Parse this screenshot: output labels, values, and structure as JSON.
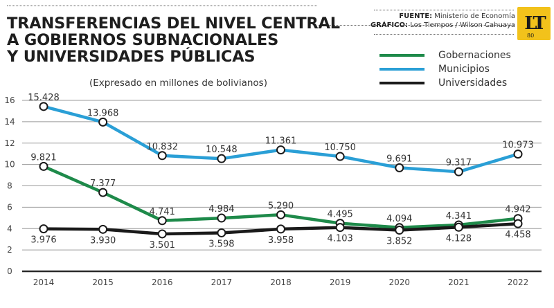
{
  "header": {
    "title_lines": [
      "TRANSFERENCIAS DEL NIVEL CENTRAL",
      "A GOBIERNOS SUBNACIONALES",
      "Y UNIVERSIDADES PÚBLICAS"
    ],
    "subtitle": "(Expresado en millones de bolivianos)",
    "source_label": "FUENTE:",
    "source_value": "Ministerio de Economía",
    "graphic_label": "GRÁFICO:",
    "graphic_value": "Los Tiempos / Wilson Cahuaya",
    "logo_text": "LT",
    "logo_sub": "80"
  },
  "colors": {
    "gobernaciones": "#1e8a4a",
    "municipios": "#2a9fd6",
    "universidades": "#1a1a1a",
    "grid": "#9a9a9a",
    "logo_bg": "#f2c21b"
  },
  "chart_data": {
    "type": "line",
    "title": "TRANSFERENCIAS DEL NIVEL CENTRAL A GOBIERNOS SUBNACIONALES Y UNIVERSIDADES PÚBLICAS",
    "subtitle": "(Expresado en millones de bolivianos)",
    "xlabel": "",
    "ylabel": "",
    "x": [
      "2014",
      "2015",
      "2016",
      "2017",
      "2018",
      "2019",
      "2020",
      "2021",
      "2022"
    ],
    "ylim": [
      0,
      16
    ],
    "yticks": [
      0,
      2,
      4,
      6,
      8,
      10,
      12,
      14,
      16
    ],
    "grid": true,
    "legend": "top-right",
    "series": [
      {
        "name": "Gobernaciones",
        "key": "gobernaciones",
        "values": [
          9.821,
          7.377,
          4.741,
          4.984,
          5.29,
          4.495,
          4.094,
          4.341,
          4.942
        ],
        "labels": [
          "9.821",
          "7.377",
          "4.741",
          "4.984",
          "5.290",
          "4.495",
          "4.094",
          "4.341",
          "4.942"
        ],
        "label_pos": [
          "above",
          "above",
          "above",
          "above",
          "above",
          "above",
          "above",
          "above",
          "above"
        ]
      },
      {
        "name": "Municipios",
        "key": "municipios",
        "values": [
          15.428,
          13.968,
          10.832,
          10.548,
          11.361,
          10.75,
          9.691,
          9.317,
          10.973
        ],
        "labels": [
          "15.428",
          "13.968",
          "10.832",
          "10.548",
          "11.361",
          "10.750",
          "9.691",
          "9.317",
          "10.973"
        ],
        "label_pos": [
          "above",
          "above",
          "above",
          "above",
          "above",
          "above",
          "above",
          "above",
          "above"
        ]
      },
      {
        "name": "Universidades",
        "key": "universidades",
        "values": [
          3.976,
          3.93,
          3.501,
          3.598,
          3.958,
          4.103,
          3.852,
          4.128,
          4.458
        ],
        "labels": [
          "3.976",
          "3.930",
          "3.501",
          "3.598",
          "3.958",
          "4.103",
          "3.852",
          "4.128",
          "4.458"
        ],
        "label_pos": [
          "below",
          "below",
          "below",
          "below",
          "below",
          "below",
          "below",
          "below",
          "below"
        ]
      }
    ]
  }
}
